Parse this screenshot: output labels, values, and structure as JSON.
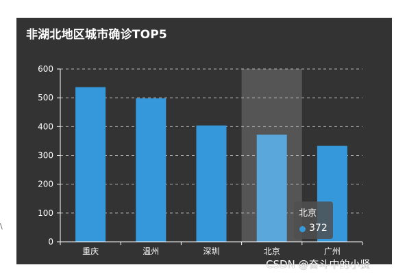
{
  "colors": {
    "background": "#333333",
    "bar": "#3498db",
    "bar_highlight": "#5aa7dc",
    "hover_band": "#555555",
    "grid": "#bbbbbb"
  },
  "chart_data": {
    "type": "bar",
    "title": "非湖北地区城市确诊TOP5",
    "categories": [
      "重庆",
      "温州",
      "深圳",
      "北京",
      "广州"
    ],
    "values": [
      537,
      498,
      404,
      372,
      333
    ],
    "ylim": [
      0,
      600
    ],
    "yticks": [
      0,
      100,
      200,
      300,
      400,
      500,
      600
    ],
    "grid": true,
    "highlighted_category": "北京"
  },
  "tooltip": {
    "title": "北京",
    "value": "372"
  },
  "watermark": "CSDN @奋斗中的小贤",
  "edge_mark": "\\"
}
